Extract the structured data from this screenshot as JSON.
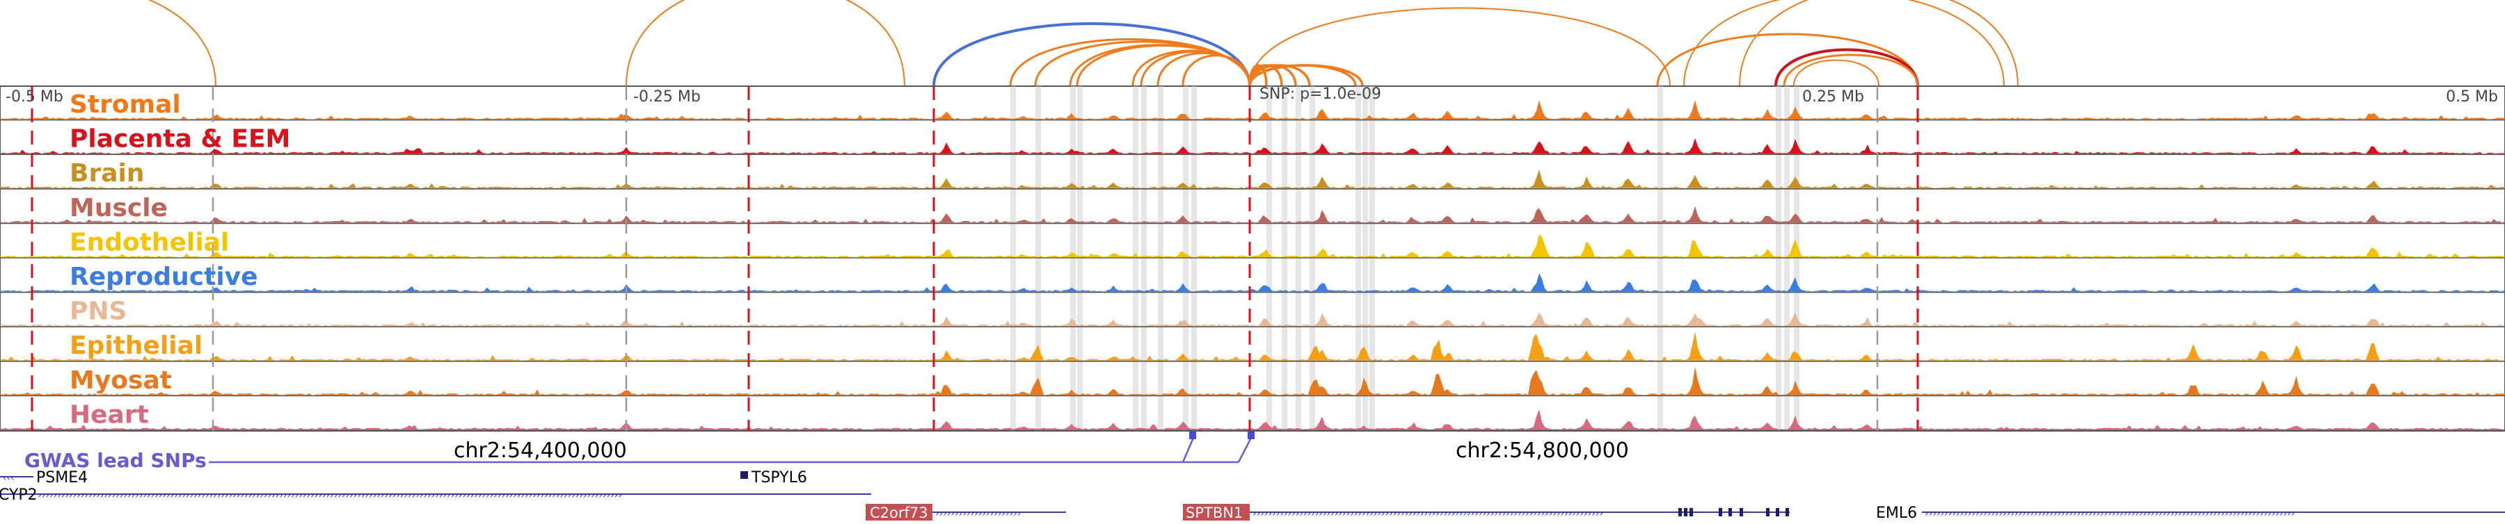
{
  "axis": {
    "labels": [
      "-0.5 Mb",
      "-0.25 Mb",
      "0.25 Mb",
      "0.5 Mb"
    ],
    "snp_label": "SNP: p=1.0e-09"
  },
  "tracks": [
    {
      "name": "Stromal",
      "color": "#f07818"
    },
    {
      "name": "Placenta & EEM",
      "color": "#d8111a"
    },
    {
      "name": "Brain",
      "color": "#c8901e"
    },
    {
      "name": "Muscle",
      "color": "#c0645a"
    },
    {
      "name": "Endothelial",
      "color": "#f5c400"
    },
    {
      "name": "Reproductive",
      "color": "#3a7ee4"
    },
    {
      "name": "PNS",
      "color": "#e6b896"
    },
    {
      "name": "Epithelial",
      "color": "#f5a014"
    },
    {
      "name": "Myosat",
      "color": "#e8781e"
    },
    {
      "name": "Heart",
      "color": "#d86a80"
    }
  ],
  "coordinates": [
    "chr2:54,400,000",
    "chr2:54,800,000"
  ],
  "gwas_label": "GWAS lead SNPs",
  "genes": [
    "PSME4",
    "TSPYL6",
    "CYP2",
    "C2orf73",
    "SPTBN1",
    "EML6"
  ],
  "colors": {
    "gwas": "#6a5acd",
    "gene_box": "#c44e52",
    "gene_line": "#3a3a9a",
    "loop_main": "#ef7b1c",
    "loop_blue": "#4a6fd4",
    "loop_red": "#c8141e"
  }
}
